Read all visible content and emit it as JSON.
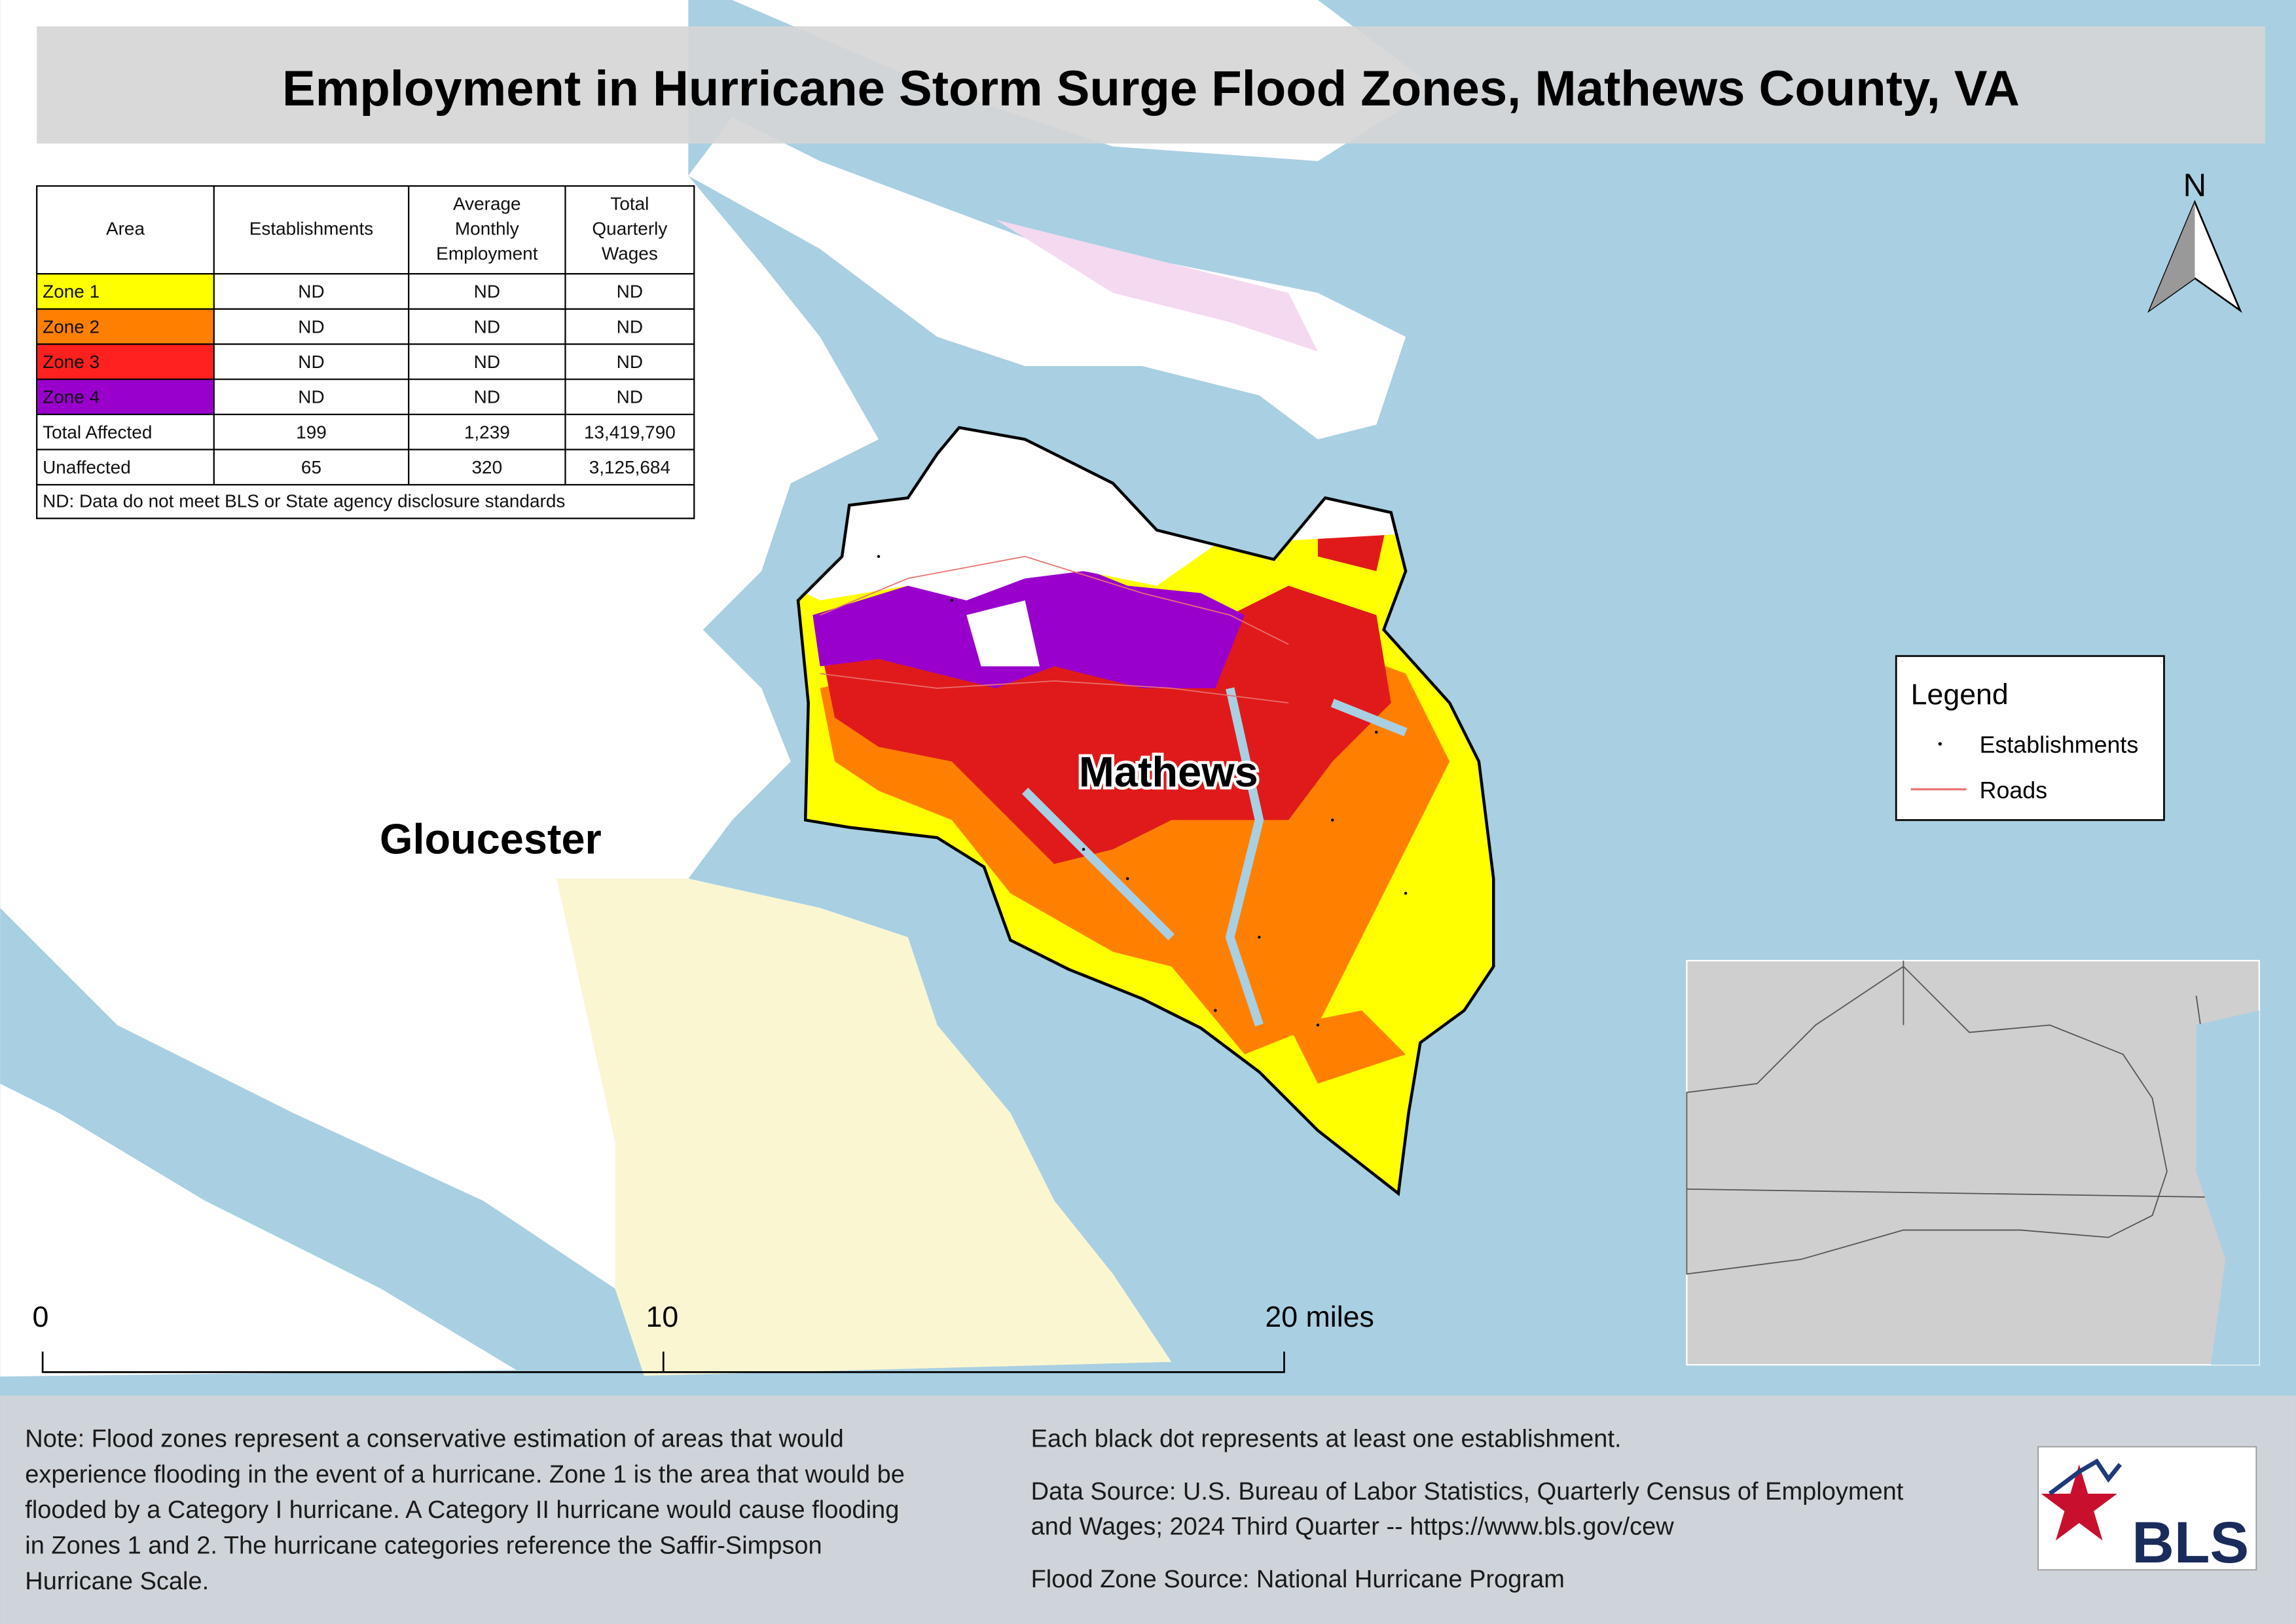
{
  "title": "Employment in Hurricane Storm Surge Flood Zones, Mathews County, VA",
  "table": {
    "headers": [
      [
        "Area"
      ],
      [
        "Establishments"
      ],
      [
        "Average",
        "Monthly",
        "Employment"
      ],
      [
        "Total",
        "Quarterly",
        "Wages"
      ]
    ],
    "rows": [
      {
        "cells": [
          "Zone 1",
          "ND",
          "ND",
          "ND"
        ],
        "color": "#ffff00"
      },
      {
        "cells": [
          "Zone 2",
          "ND",
          "ND",
          "ND"
        ],
        "color": "#ff8000"
      },
      {
        "cells": [
          "Zone 3",
          "ND",
          "ND",
          "ND"
        ],
        "color": "#ff2020"
      },
      {
        "cells": [
          "Zone 4",
          "ND",
          "ND",
          "ND"
        ],
        "color": "#9900cc"
      },
      {
        "cells": [
          "Total Affected",
          "199",
          "1,239",
          "13,419,790"
        ]
      },
      {
        "cells": [
          "Unaffected",
          "65",
          "320",
          "3,125,684"
        ]
      }
    ],
    "footnote": "ND: Data do not meet BLS or State agency disclosure standards"
  },
  "map_labels": [
    "Gloucester",
    "Mathews"
  ],
  "north": "N",
  "legend": {
    "title": "Legend",
    "items": [
      "Establishments",
      "Roads"
    ]
  },
  "scale_bar": [
    "0",
    "10",
    "20 miles"
  ],
  "notes": [
    "Note: Flood zones represent a conservative estimation of areas that would",
    "experience flooding in the event of a hurricane. Zone 1 is the area that would be",
    "flooded by a Category I hurricane. A Category II hurricane would cause flooding",
    "in Zones 1 and 2. The hurricane categories reference the Saffir-Simpson",
    "Hurricane Scale."
  ],
  "sources": {
    "dots": "Each black dot represents at least one establishment.",
    "data_source": [
      "Data Source: U.S. Bureau of Labor Statistics, Quarterly Census of Employment",
      "and Wages; 2024 Third Quarter -- https://www.bls.gov/cew"
    ],
    "flood_zone": "Flood Zone Source: National Hurricane Program"
  },
  "logo": "BLS"
}
